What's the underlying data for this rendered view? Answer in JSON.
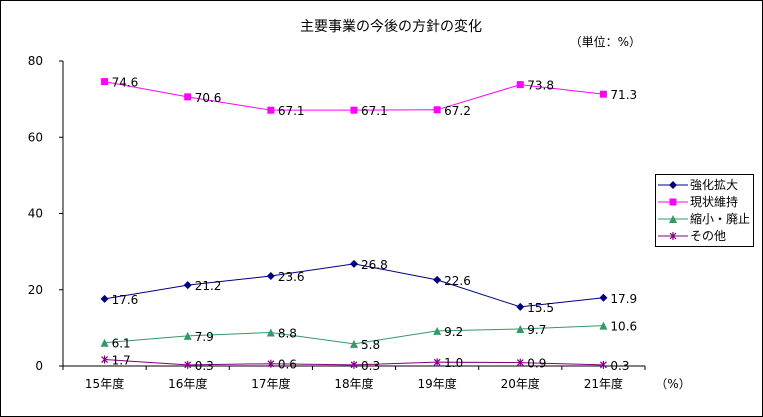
{
  "chart_data": {
    "type": "line",
    "title": "主要事業の今後の方針の変化",
    "unit_label": "（単位：%）",
    "x_unit_label": "（%）",
    "categories": [
      "15年度",
      "16年度",
      "17年度",
      "18年度",
      "19年度",
      "20年度",
      "21年度"
    ],
    "ylim": [
      0,
      80
    ],
    "yticks": [
      0,
      20,
      40,
      60,
      80
    ],
    "grid": false,
    "legend_position": "right",
    "series": [
      {
        "name": "強化拡大",
        "color": "#000080",
        "marker": "diamond",
        "values": [
          17.6,
          21.2,
          23.6,
          26.8,
          22.6,
          15.5,
          17.9
        ],
        "labels": [
          "17.6",
          "21.2",
          "23.6",
          "26.8",
          "22.6",
          "15.5",
          "17.9"
        ]
      },
      {
        "name": "現状維持",
        "color": "#ff00ff",
        "marker": "square",
        "values": [
          74.6,
          70.6,
          67.1,
          67.1,
          67.2,
          73.8,
          71.3
        ],
        "labels": [
          "74.6",
          "70.6",
          "67.1",
          "67.1",
          "67.2",
          "73.8",
          "71.3"
        ]
      },
      {
        "name": "縮小・廃止",
        "color": "#339966",
        "marker": "triangle",
        "values": [
          6.1,
          7.9,
          8.8,
          5.8,
          9.2,
          9.7,
          10.6
        ],
        "labels": [
          "6.1",
          "7.9",
          "8.8",
          "5.8",
          "9.2",
          "9.7",
          "10.6"
        ]
      },
      {
        "name": "その他",
        "color": "#800080",
        "marker": "star",
        "values": [
          1.7,
          0.3,
          0.6,
          0.3,
          1.0,
          0.9,
          0.3
        ],
        "labels": [
          "1.7",
          "0.3",
          "0.6",
          "0.3",
          "1.0",
          "0.9",
          "0.3"
        ]
      }
    ]
  }
}
